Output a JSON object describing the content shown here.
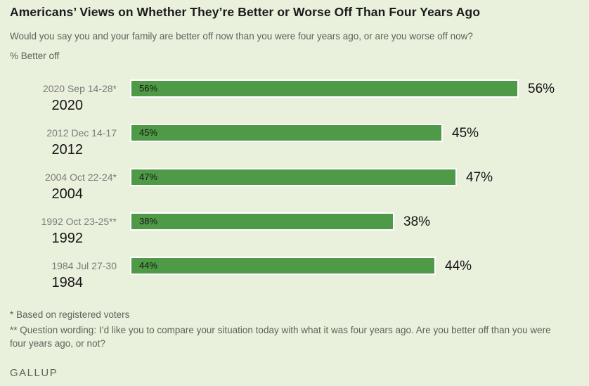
{
  "page": {
    "background_color": "#e9f0dc",
    "title_color": "#1b1b1b",
    "text_gray": "#5e635a",
    "category_label_color": "#7b7b78",
    "year_label_color": "#161616",
    "value_color": "#141414"
  },
  "header": {
    "title": "Americans’ Views on Whether They’re Better or Worse Off Than Four Years Ago",
    "subtitle": "Would you say you and your family are better off now than you were four years ago, or are you worse off now?",
    "series_label": "% Better off"
  },
  "chart_data": {
    "type": "bar",
    "orientation": "horizontal",
    "title": "% Better off",
    "categories": [
      "2020 Sep 14-28*",
      "2012 Dec 14-17",
      "2004 Oct 22-24*",
      "1992 Oct 23-25**",
      "1984 Jul 27-30"
    ],
    "group_labels": [
      "2020",
      "2012",
      "2004",
      "1992",
      "1984"
    ],
    "values": [
      56,
      45,
      47,
      38,
      44
    ],
    "value_labels": [
      "56%",
      "45%",
      "47%",
      "38%",
      "44%"
    ],
    "bar_color": "#4f9a47",
    "bar_border_color": "#ffffff",
    "xlim": [
      0,
      80
    ],
    "grid": false,
    "legend": "none"
  },
  "footnotes": [
    "* Based on registered voters",
    "** Question wording: I’d like you to compare your situation today with what it was four years ago. Are you better off than you were four years ago, or not?"
  ],
  "source": {
    "brand": "GALLUP"
  }
}
